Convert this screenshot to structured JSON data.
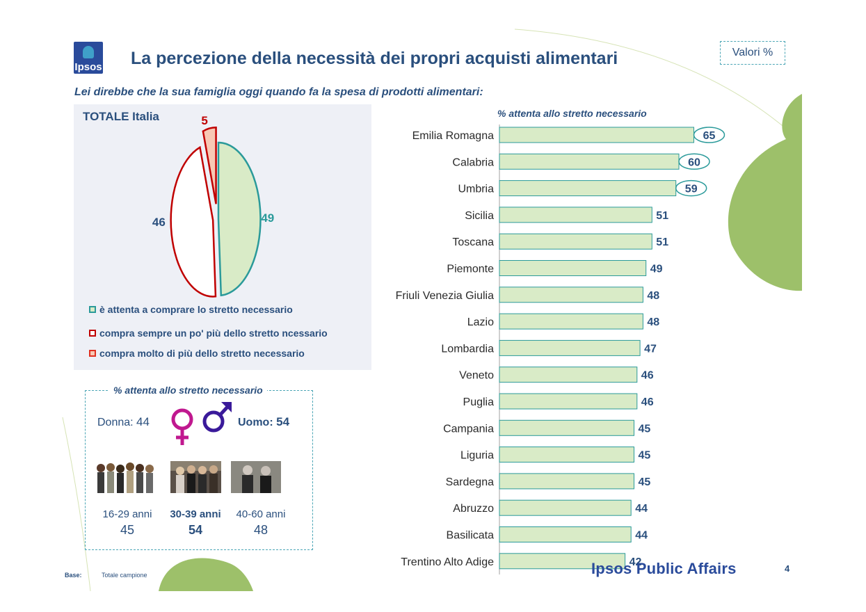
{
  "header": {
    "logo_text": "Ipsos",
    "title": "La percezione della necessità dei propri acquisti alimentari",
    "valori_label": "Valori %",
    "question": "Lei direbbe che la sua famiglia oggi quando fa la spesa di prodotti alimentari:"
  },
  "pie_panel": {
    "title": "TOTALE Italia",
    "legend": [
      {
        "label": "è attenta a comprare lo stretto necessario",
        "color": "#2a9a9a"
      },
      {
        "label": "compra sempre un po' più dello stretto ncessario",
        "color": "#c00000"
      },
      {
        "label": "compra molto di più dello stretto necessario",
        "color": "#e03020"
      }
    ]
  },
  "gender_panel": {
    "title": "% attenta allo stretto necessario",
    "donna_label": "Donna:",
    "donna_value": "44",
    "uomo_label": "Uomo:",
    "uomo_value": "54",
    "ages": [
      {
        "label": "16-29 anni",
        "value": "45"
      },
      {
        "label": "30-39 anni",
        "value": "54"
      },
      {
        "label": "40-60 anni",
        "value": "48"
      }
    ]
  },
  "bar_header": "% attenta allo stretto necessario",
  "chart_data": [
    {
      "type": "pie",
      "title": "TOTALE Italia",
      "categories": [
        "è attenta a comprare lo stretto necessario",
        "compra sempre un po' più dello stretto ncessario",
        "compra molto di più dello stretto necessario"
      ],
      "values": [
        49,
        46,
        5
      ],
      "colors": [
        "#d9ebc7",
        "#ffffff",
        "#f8c8b4"
      ],
      "edge_colors": [
        "#2a9a9a",
        "#c00000",
        "#c00000"
      ],
      "label_colors": [
        "#2a9a9a",
        "#2a4f7d",
        "#c00000"
      ],
      "legend": "bottom-left"
    },
    {
      "type": "bar",
      "orientation": "horizontal",
      "title": "% attenta allo stretto necessario",
      "categories": [
        "Emilia Romagna",
        "Calabria",
        "Umbria",
        "Sicilia",
        "Toscana",
        "Piemonte",
        "Friuli Venezia Giulia",
        "Lazio",
        "Lombardia",
        "Veneto",
        "Puglia",
        "Campania",
        "Liguria",
        "Sardegna",
        "Abruzzo",
        "Basilicata",
        "Trentino Alto Adige"
      ],
      "values": [
        65,
        60,
        59,
        51,
        51,
        49,
        48,
        48,
        47,
        46,
        46,
        45,
        45,
        45,
        44,
        44,
        42
      ],
      "highlighted": [
        true,
        true,
        true,
        false,
        false,
        false,
        false,
        false,
        false,
        false,
        false,
        false,
        false,
        false,
        false,
        false,
        false
      ],
      "bar_color": "#d9ebc7",
      "bar_edge": "#2a9a9a",
      "label_color": "#2a4f7d",
      "grid": false
    }
  ],
  "footer": {
    "base_label": "Base:",
    "base_value": "Totale campione",
    "brand": "Ipsos Public Affairs",
    "page": "4"
  }
}
